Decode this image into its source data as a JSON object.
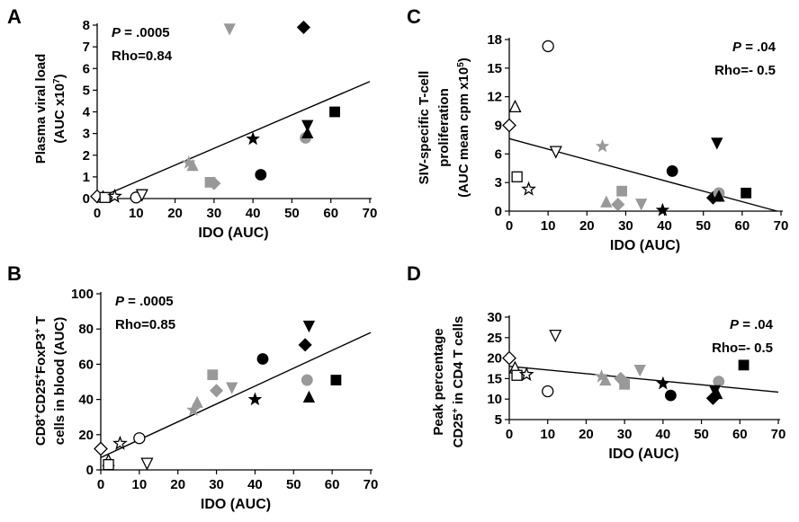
{
  "chart_data": [
    {
      "panel": "A",
      "type": "scatter",
      "xlabel": "IDO (AUC)",
      "ylabel_lines": [
        "Plasma viral load",
        "(AUC x10<sup>7</sup>)"
      ],
      "ylabel": [
        "Plasma viral load",
        "(AUC x10^7)"
      ],
      "xlim": [
        0,
        70
      ],
      "ylim": [
        0,
        8
      ],
      "xticks": [
        0,
        10,
        20,
        30,
        40,
        50,
        60,
        70
      ],
      "yticks": [
        0,
        1,
        2,
        3,
        4,
        5,
        6,
        7,
        8
      ],
      "stats": {
        "p_label": "P",
        "p_value": " = .0005",
        "rho": "Rho=0.84",
        "position": "top-left"
      },
      "trendline": [
        [
          0,
          0.0
        ],
        [
          70,
          5.4
        ]
      ],
      "points": [
        {
          "x": 0,
          "y": 0.1,
          "marker": "diamond",
          "fill": "open"
        },
        {
          "x": 1.5,
          "y": 0.05,
          "marker": "triangle",
          "fill": "open"
        },
        {
          "x": 2,
          "y": 0.05,
          "marker": "square",
          "fill": "open"
        },
        {
          "x": 4.5,
          "y": 0.1,
          "marker": "star",
          "fill": "open"
        },
        {
          "x": 10,
          "y": 0.05,
          "marker": "circle",
          "fill": "open"
        },
        {
          "x": 11.5,
          "y": 0.2,
          "marker": "triangle-down",
          "fill": "open"
        },
        {
          "x": 23.5,
          "y": 1.65,
          "marker": "star",
          "fill": "gray"
        },
        {
          "x": 24.5,
          "y": 1.5,
          "marker": "triangle",
          "fill": "gray"
        },
        {
          "x": 29,
          "y": 0.75,
          "marker": "square",
          "fill": "gray"
        },
        {
          "x": 30,
          "y": 0.7,
          "marker": "diamond",
          "fill": "gray"
        },
        {
          "x": 34,
          "y": 7.85,
          "marker": "triangle-down",
          "fill": "gray"
        },
        {
          "x": 40,
          "y": 2.75,
          "marker": "star",
          "fill": "black"
        },
        {
          "x": 42,
          "y": 1.1,
          "marker": "circle",
          "fill": "black"
        },
        {
          "x": 53,
          "y": 7.9,
          "marker": "diamond",
          "fill": "black"
        },
        {
          "x": 53.5,
          "y": 2.8,
          "marker": "circle",
          "fill": "gray"
        },
        {
          "x": 54,
          "y": 3.4,
          "marker": "triangle-down",
          "fill": "black"
        },
        {
          "x": 54,
          "y": 3.0,
          "marker": "triangle",
          "fill": "black"
        },
        {
          "x": 61,
          "y": 4.0,
          "marker": "square",
          "fill": "black"
        }
      ]
    },
    {
      "panel": "B",
      "type": "scatter",
      "xlabel": "IDO (AUC)",
      "ylabel_lines": [
        "CD8<sup>+</sup>CD25<sup>+</sup>FoxP3<sup>+</sup> T",
        "cells in blood (AUC)"
      ],
      "ylabel": [
        "CD8+CD25+FoxP3+ T",
        "cells in blood (AUC)"
      ],
      "xlim": [
        0,
        70
      ],
      "ylim": [
        0,
        100
      ],
      "xticks": [
        0,
        10,
        20,
        30,
        40,
        50,
        60,
        70
      ],
      "yticks": [
        0,
        20,
        40,
        60,
        80,
        100
      ],
      "stats": {
        "p_label": "P",
        "p_value": " = .0005",
        "rho": "Rho=0.85",
        "position": "top-left"
      },
      "trendline": [
        [
          0,
          7
        ],
        [
          70,
          78
        ]
      ],
      "points": [
        {
          "x": 0,
          "y": 12,
          "marker": "diamond",
          "fill": "open"
        },
        {
          "x": 2,
          "y": 5,
          "marker": "triangle",
          "fill": "open"
        },
        {
          "x": 2,
          "y": 3,
          "marker": "square",
          "fill": "open"
        },
        {
          "x": 5,
          "y": 15,
          "marker": "star",
          "fill": "open"
        },
        {
          "x": 10,
          "y": 18,
          "marker": "circle",
          "fill": "open"
        },
        {
          "x": 12,
          "y": 4,
          "marker": "triangle-down",
          "fill": "open"
        },
        {
          "x": 24,
          "y": 34,
          "marker": "star",
          "fill": "gray"
        },
        {
          "x": 25,
          "y": 38,
          "marker": "triangle",
          "fill": "gray"
        },
        {
          "x": 29,
          "y": 54,
          "marker": "square",
          "fill": "gray"
        },
        {
          "x": 30,
          "y": 45,
          "marker": "diamond",
          "fill": "gray"
        },
        {
          "x": 34,
          "y": 47,
          "marker": "triangle-down",
          "fill": "gray"
        },
        {
          "x": 40,
          "y": 40,
          "marker": "star",
          "fill": "black"
        },
        {
          "x": 42,
          "y": 63,
          "marker": "circle",
          "fill": "black"
        },
        {
          "x": 53,
          "y": 71,
          "marker": "diamond",
          "fill": "black"
        },
        {
          "x": 53.5,
          "y": 51,
          "marker": "circle",
          "fill": "gray"
        },
        {
          "x": 54,
          "y": 82,
          "marker": "triangle-down",
          "fill": "black"
        },
        {
          "x": 54,
          "y": 41,
          "marker": "triangle",
          "fill": "black"
        },
        {
          "x": 61,
          "y": 51,
          "marker": "square",
          "fill": "black"
        }
      ]
    },
    {
      "panel": "C",
      "type": "scatter",
      "xlabel": "IDO (AUC)",
      "ylabel_lines": [
        "SIV-specific T-cell",
        "proliferation",
        "(AUC  mean cpm x10<sup>5</sup>)"
      ],
      "ylabel": [
        "SIV-specific T-cell",
        "proliferation",
        "(AUC  mean cpm x10^5)"
      ],
      "xlim": [
        0,
        70
      ],
      "ylim": [
        0,
        18
      ],
      "xticks": [
        0,
        10,
        20,
        30,
        40,
        50,
        60,
        70
      ],
      "yticks": [
        0,
        3,
        6,
        9,
        12,
        15,
        18
      ],
      "stats": {
        "p_label": "P",
        "p_value": " = .04",
        "rho": "Rho=- 0.5",
        "position": "top-right"
      },
      "trendline": [
        [
          0,
          7.6
        ],
        [
          69,
          0
        ]
      ],
      "points": [
        {
          "x": 0,
          "y": 9.0,
          "marker": "diamond",
          "fill": "open"
        },
        {
          "x": 1.5,
          "y": 10.9,
          "marker": "triangle",
          "fill": "open"
        },
        {
          "x": 2,
          "y": 3.6,
          "marker": "square",
          "fill": "open"
        },
        {
          "x": 5,
          "y": 2.3,
          "marker": "star",
          "fill": "open"
        },
        {
          "x": 10,
          "y": 17.3,
          "marker": "circle",
          "fill": "open"
        },
        {
          "x": 12,
          "y": 6.3,
          "marker": "triangle-down",
          "fill": "open"
        },
        {
          "x": 24,
          "y": 6.8,
          "marker": "star",
          "fill": "gray"
        },
        {
          "x": 25,
          "y": 0.9,
          "marker": "triangle",
          "fill": "gray"
        },
        {
          "x": 29,
          "y": 2.1,
          "marker": "square",
          "fill": "gray"
        },
        {
          "x": 28,
          "y": 0.7,
          "marker": "diamond",
          "fill": "gray"
        },
        {
          "x": 34,
          "y": 0.8,
          "marker": "triangle-down",
          "fill": "gray"
        },
        {
          "x": 39.5,
          "y": 0.1,
          "marker": "star",
          "fill": "black"
        },
        {
          "x": 42,
          "y": 4.2,
          "marker": "circle",
          "fill": "black"
        },
        {
          "x": 52.5,
          "y": 1.4,
          "marker": "diamond",
          "fill": "black"
        },
        {
          "x": 54,
          "y": 1.9,
          "marker": "circle",
          "fill": "gray"
        },
        {
          "x": 53.5,
          "y": 7.2,
          "marker": "triangle-down",
          "fill": "black"
        },
        {
          "x": 54,
          "y": 1.5,
          "marker": "triangle",
          "fill": "black"
        },
        {
          "x": 61,
          "y": 1.9,
          "marker": "square",
          "fill": "black"
        }
      ]
    },
    {
      "panel": "D",
      "type": "scatter",
      "xlabel": "IDO (AUC)",
      "ylabel_lines": [
        "Peak percentage",
        "CD25<sup>+</sup> in CD4 T cells"
      ],
      "ylabel": [
        "Peak percentage",
        "CD25+ in CD4 T cells"
      ],
      "xlim": [
        0,
        70
      ],
      "ylim": [
        5,
        30
      ],
      "xticks": [
        0,
        10,
        20,
        30,
        40,
        50,
        60,
        70
      ],
      "yticks": [
        5,
        10,
        15,
        20,
        25,
        30
      ],
      "stats": {
        "p_label": "P",
        "p_value": " = .04",
        "rho": "Rho=- 0.5",
        "position": "top-right"
      },
      "trendline": [
        [
          0,
          18.0
        ],
        [
          70,
          11.7
        ]
      ],
      "points": [
        {
          "x": 0,
          "y": 20.0,
          "marker": "diamond",
          "fill": "open"
        },
        {
          "x": 1.5,
          "y": 17.5,
          "marker": "triangle",
          "fill": "open"
        },
        {
          "x": 2,
          "y": 15.8,
          "marker": "square",
          "fill": "open"
        },
        {
          "x": 4.5,
          "y": 16.0,
          "marker": "star",
          "fill": "open"
        },
        {
          "x": 10,
          "y": 11.9,
          "marker": "circle",
          "fill": "open"
        },
        {
          "x": 12,
          "y": 25.7,
          "marker": "triangle-down",
          "fill": "open"
        },
        {
          "x": 24,
          "y": 15.5,
          "marker": "star",
          "fill": "gray"
        },
        {
          "x": 25,
          "y": 14.5,
          "marker": "triangle",
          "fill": "gray"
        },
        {
          "x": 30,
          "y": 13.6,
          "marker": "square",
          "fill": "gray"
        },
        {
          "x": 29,
          "y": 15.0,
          "marker": "diamond",
          "fill": "gray"
        },
        {
          "x": 34,
          "y": 17.2,
          "marker": "triangle-down",
          "fill": "gray"
        },
        {
          "x": 40,
          "y": 13.8,
          "marker": "star",
          "fill": "black"
        },
        {
          "x": 42,
          "y": 10.9,
          "marker": "circle",
          "fill": "black"
        },
        {
          "x": 53,
          "y": 10.2,
          "marker": "diamond",
          "fill": "black"
        },
        {
          "x": 54.5,
          "y": 14.3,
          "marker": "circle",
          "fill": "gray"
        },
        {
          "x": 53.5,
          "y": 12.2,
          "marker": "triangle-down",
          "fill": "black"
        },
        {
          "x": 54,
          "y": 11.2,
          "marker": "triangle",
          "fill": "black"
        },
        {
          "x": 61,
          "y": 18.3,
          "marker": "square",
          "fill": "black"
        }
      ]
    }
  ],
  "colors": {
    "black": "#000000",
    "gray": "#999999",
    "open": "#ffffff"
  }
}
